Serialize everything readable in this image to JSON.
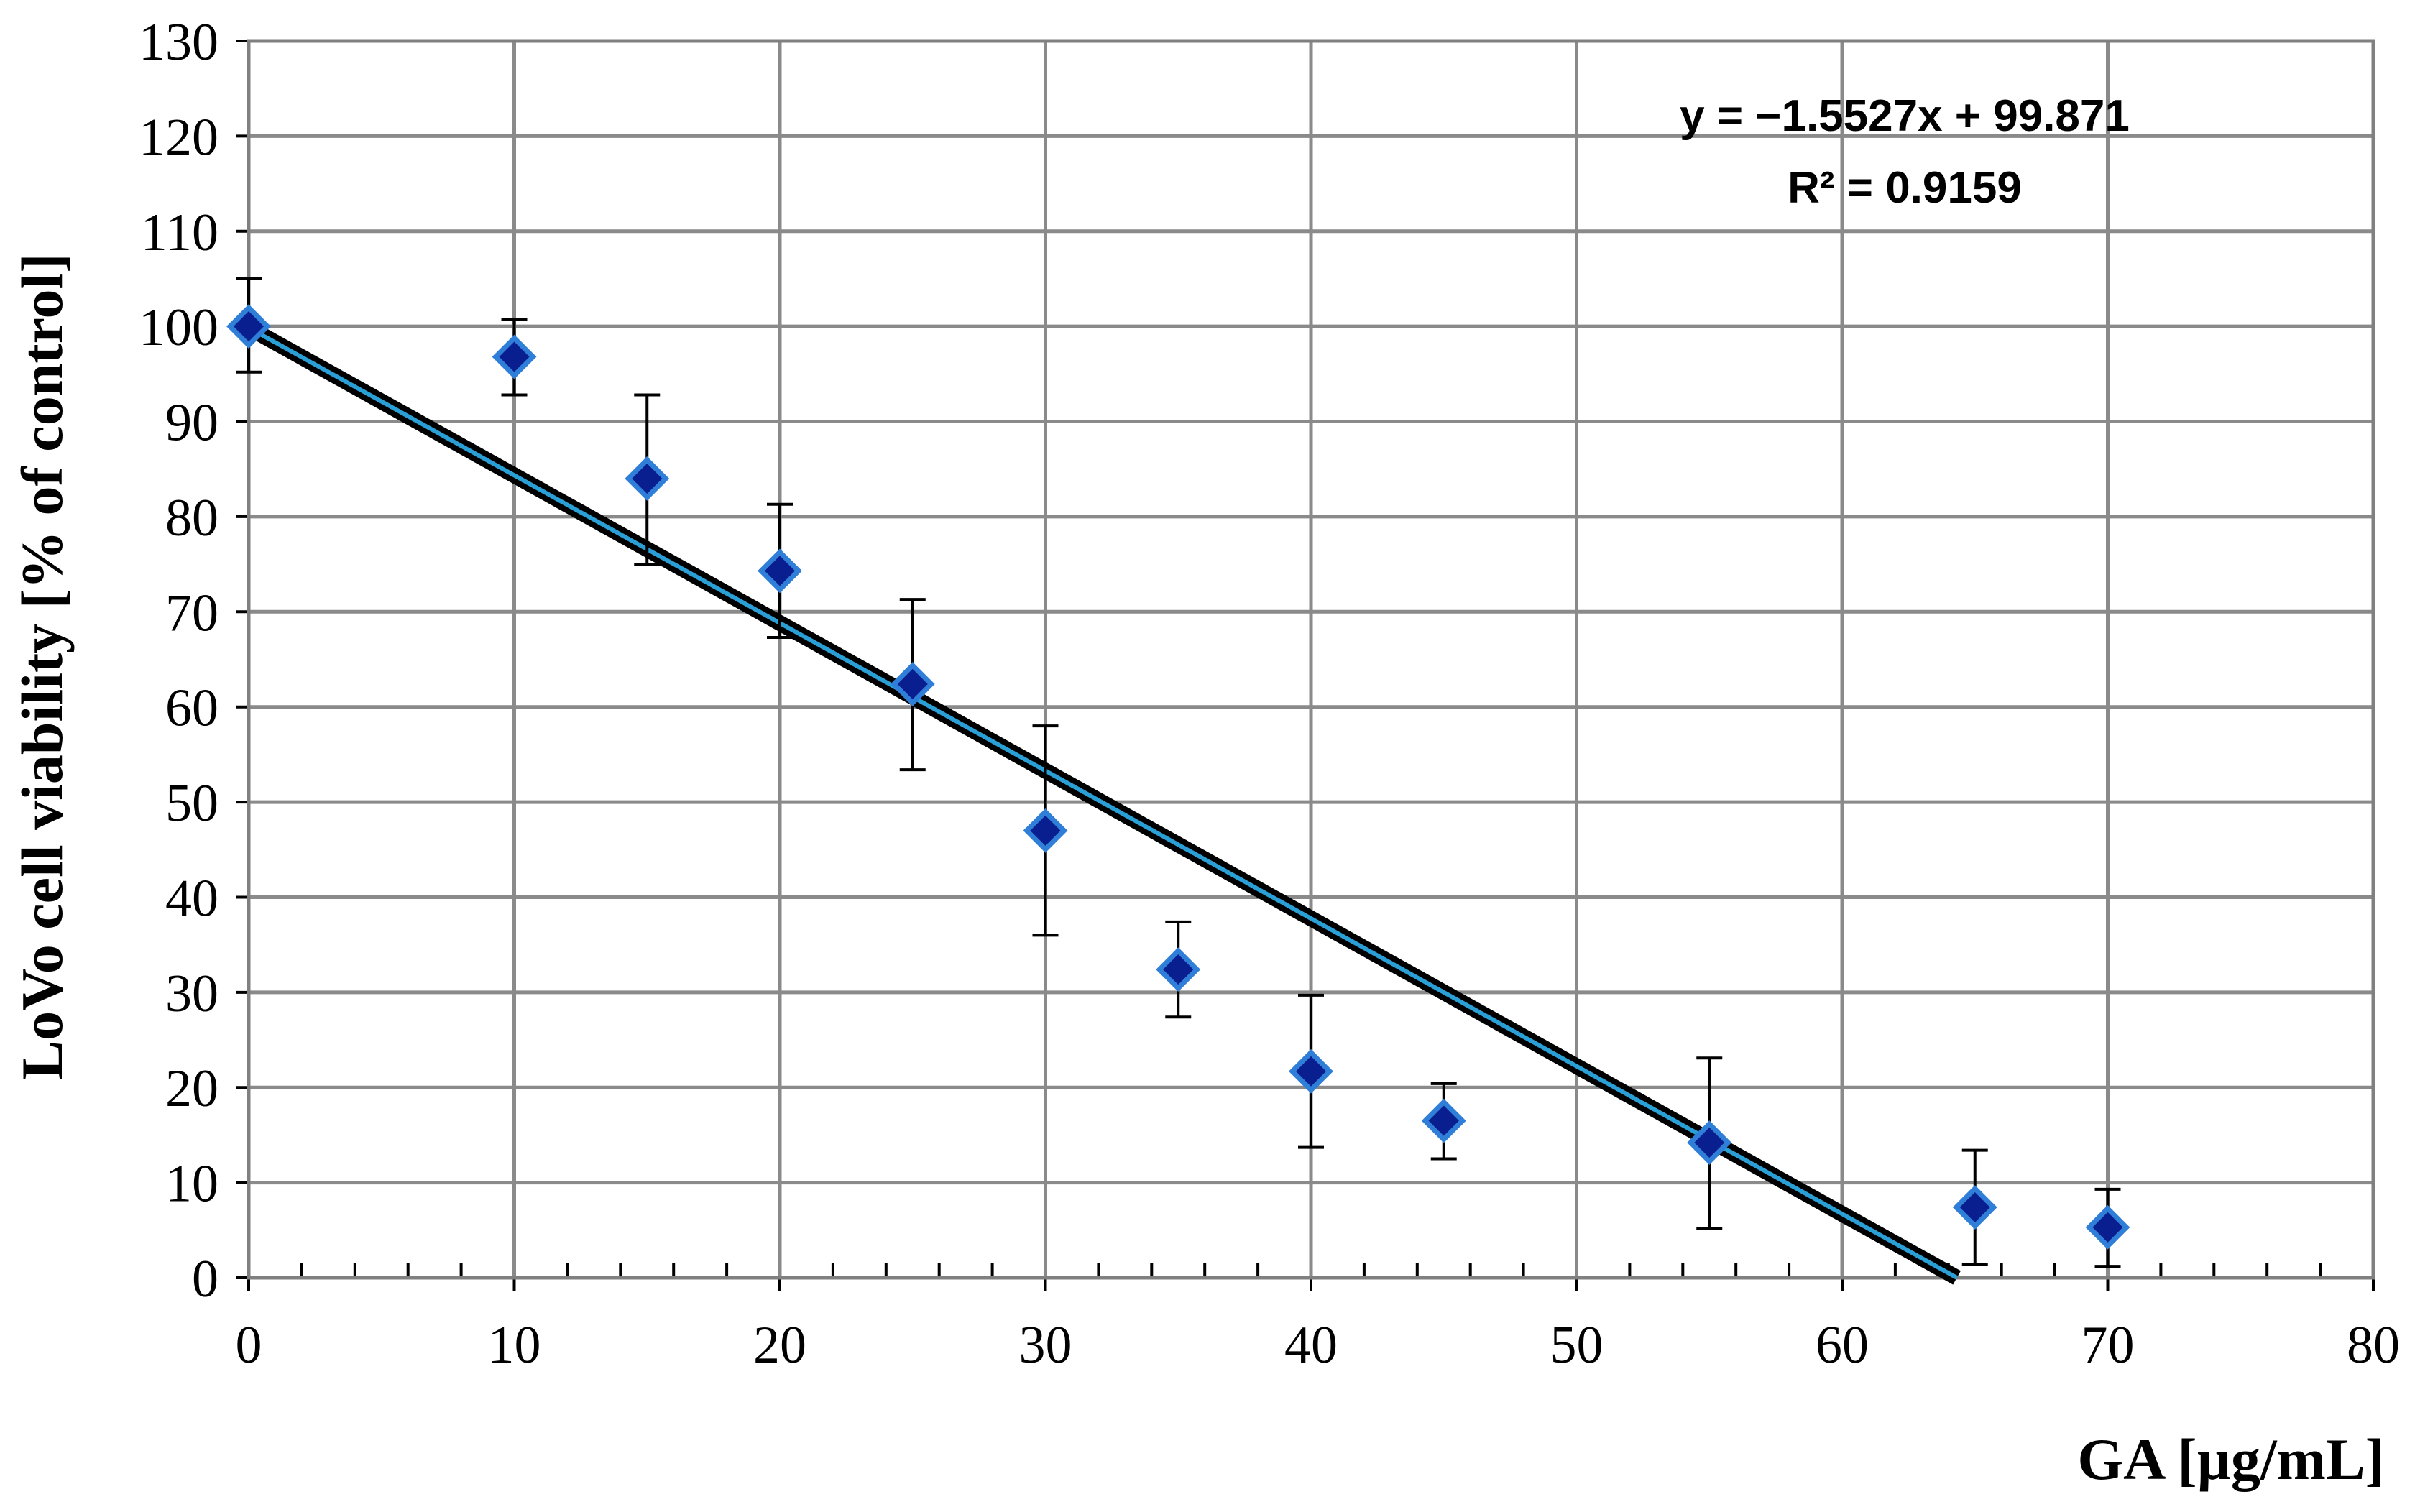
{
  "chart_data": {
    "type": "scatter",
    "title": "",
    "xlabel": "GA [µg/mL]",
    "ylabel": "LoVo cell viability [% of control]",
    "xlim": [
      0,
      80
    ],
    "ylim": [
      0,
      130
    ],
    "x_ticks": [
      "0",
      "10",
      "20",
      "30",
      "40",
      "50",
      "60",
      "70",
      "80"
    ],
    "y_ticks": [
      "0",
      "10",
      "20",
      "30",
      "40",
      "50",
      "60",
      "70",
      "80",
      "90",
      "100",
      "110",
      "120",
      "130"
    ],
    "grid": true,
    "legend": "none",
    "series": [
      {
        "x": [
          0,
          10,
          15,
          20,
          25,
          30,
          35,
          40,
          45,
          55,
          65,
          70
        ],
        "y": [
          100,
          96.8,
          84,
          74.3,
          62.4,
          47,
          32.4,
          21.7,
          16.5,
          14.2,
          7.4,
          5.3
        ],
        "error_upper": [
          105,
          100.7,
          92.8,
          81.3,
          71.3,
          58,
          37.4,
          29.7,
          20.4,
          23.1,
          13.4,
          9.3
        ],
        "error_lower": [
          95.2,
          92.8,
          75,
          67.3,
          53.4,
          36,
          27.4,
          13.7,
          12.5,
          5.2,
          1.4,
          1.2
        ],
        "marker": "diamond",
        "color": "#0a1f8f",
        "edge_color": "#2f7fd8"
      }
    ],
    "trendline": {
      "type": "linear",
      "slope": -1.5527,
      "intercept": 99.871,
      "color": "#000000",
      "inner_color": "#2a9fd6",
      "equation": "y = −1.5527x + 99.871",
      "r_squared": "R² = 0.9159"
    }
  }
}
